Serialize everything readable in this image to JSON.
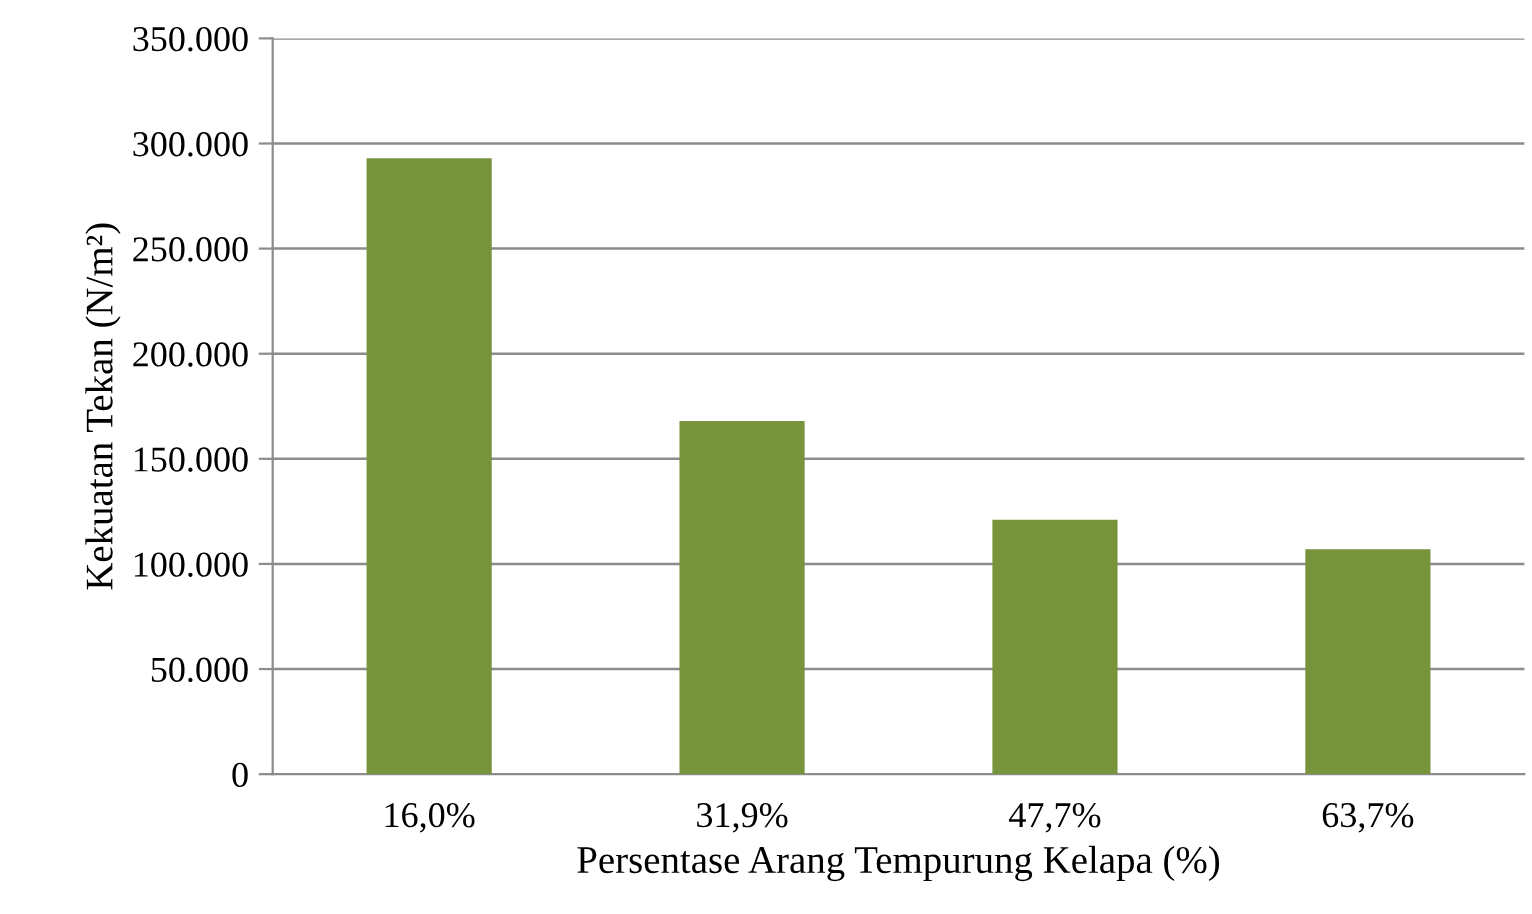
{
  "chart_data": {
    "type": "bar",
    "xlabel": "Persentase Arang Tempurung Kelapa (%)",
    "ylabel": "Kekuatan Tekan (N/m²)",
    "categories": [
      "16,0%",
      "31,9%",
      "47,7%",
      "63,7%"
    ],
    "values": [
      293000,
      168000,
      121000,
      107000
    ],
    "color": "#77933c",
    "ylim": [
      0,
      350000
    ],
    "yticks": [
      {
        "value": 0,
        "label": "0"
      },
      {
        "value": 50000,
        "label": "50.000"
      },
      {
        "value": 100000,
        "label": "100.000"
      },
      {
        "value": 150000,
        "label": "150.000"
      },
      {
        "value": 200000,
        "label": "200.000"
      },
      {
        "value": 250000,
        "label": "250.000"
      },
      {
        "value": 300000,
        "label": "300.000"
      },
      {
        "value": 350000,
        "label": "350.000"
      }
    ],
    "grid": "y",
    "legend": false
  }
}
